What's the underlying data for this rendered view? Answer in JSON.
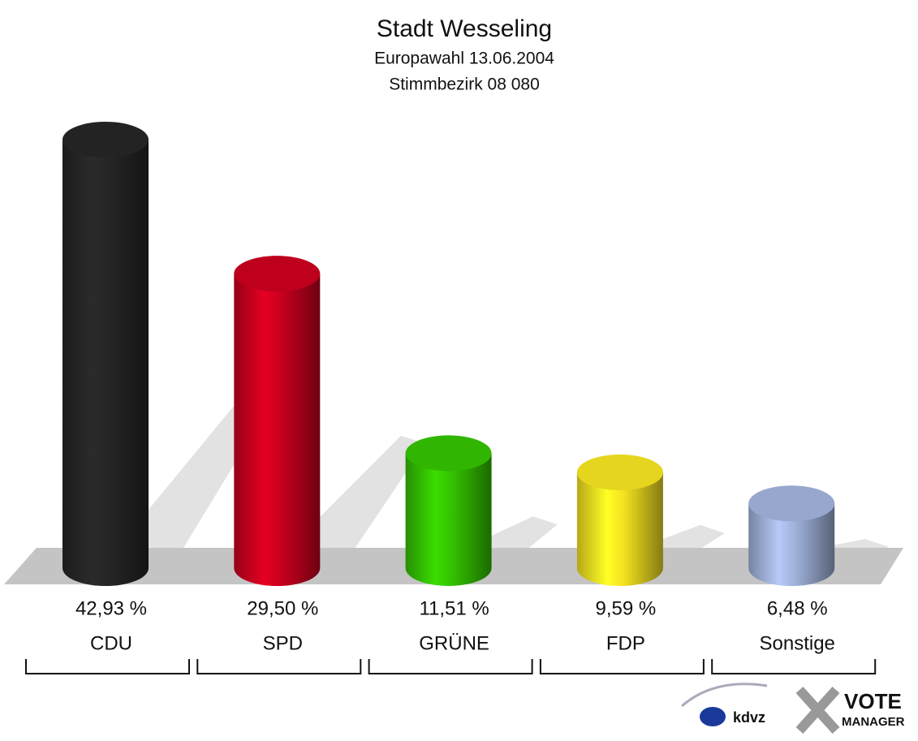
{
  "chart_data": {
    "type": "bar",
    "title": "Stadt Wesseling",
    "subtitle": [
      "Europawahl 13.06.2004",
      "Stimmbezirk 08 080"
    ],
    "categories": [
      "CDU",
      "SPD",
      "GRÜNE",
      "FDP",
      "Sonstige"
    ],
    "values": [
      42.93,
      29.5,
      11.51,
      9.59,
      6.48
    ],
    "value_labels": [
      "42,93 %",
      "29,50 %",
      "11,51 %",
      "9,59 %",
      "6,48 %"
    ],
    "colors": [
      "#252525",
      "#c8001e",
      "#33c000",
      "#f2e020",
      "#9fb0d8"
    ]
  },
  "logos": [
    "kdvz",
    "VOTE",
    "MANAGER"
  ]
}
